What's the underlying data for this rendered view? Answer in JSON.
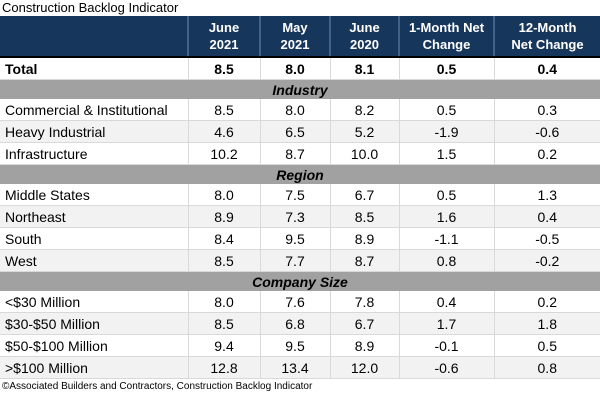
{
  "colors": {
    "header_bg": "#17365C",
    "header_text": "#FFFFFF",
    "header_divider": "#41628A",
    "section_band_bg": "#A1A1A1",
    "stripe_bg": "#F2F2F2",
    "grid_line": "#D9D9D9",
    "text": "#000000"
  },
  "chart_data": {
    "type": "table",
    "title": "Construction Backlog Indicator",
    "source": "©Associated Builders and Contractors, Construction Backlog Indicator",
    "columns": [
      {
        "label": "June 2021",
        "lines": [
          "June",
          "2021"
        ]
      },
      {
        "label": "May 2021",
        "lines": [
          "May",
          "2021"
        ]
      },
      {
        "label": "June 2020",
        "lines": [
          "June",
          "2020"
        ]
      },
      {
        "label": "1-Month Net Change",
        "lines": [
          "1-Month Net",
          "Change"
        ]
      },
      {
        "label": "12-Month Net Change",
        "lines": [
          "12-Month",
          "Net Change"
        ]
      }
    ],
    "total": {
      "label": "Total",
      "values": [
        8.5,
        8.0,
        8.1,
        0.5,
        0.4
      ]
    },
    "sections": [
      {
        "name": "Industry",
        "rows": [
          {
            "label": "Commercial & Institutional",
            "values": [
              8.5,
              8.0,
              8.2,
              0.5,
              0.3
            ]
          },
          {
            "label": "Heavy Industrial",
            "values": [
              4.6,
              6.5,
              5.2,
              -1.9,
              -0.6
            ]
          },
          {
            "label": "Infrastructure",
            "values": [
              10.2,
              8.7,
              10.0,
              1.5,
              0.2
            ]
          }
        ]
      },
      {
        "name": "Region",
        "rows": [
          {
            "label": "Middle States",
            "values": [
              8.0,
              7.5,
              6.7,
              0.5,
              1.3
            ]
          },
          {
            "label": "Northeast",
            "values": [
              8.9,
              7.3,
              8.5,
              1.6,
              0.4
            ]
          },
          {
            "label": "South",
            "values": [
              8.4,
              9.5,
              8.9,
              -1.1,
              -0.5
            ]
          },
          {
            "label": "West",
            "values": [
              8.5,
              7.7,
              8.7,
              0.8,
              -0.2
            ]
          }
        ]
      },
      {
        "name": "Company Size",
        "rows": [
          {
            "label": "<$30 Million",
            "values": [
              8.0,
              7.6,
              7.8,
              0.4,
              0.2
            ]
          },
          {
            "label": "$30-$50 Million",
            "values": [
              8.5,
              6.8,
              6.7,
              1.7,
              1.8
            ]
          },
          {
            "label": "$50-$100 Million",
            "values": [
              9.4,
              9.5,
              8.9,
              -0.1,
              0.5
            ]
          },
          {
            "label": ">$100 Million",
            "values": [
              12.8,
              13.4,
              12.0,
              -0.6,
              0.8
            ]
          }
        ]
      }
    ]
  }
}
